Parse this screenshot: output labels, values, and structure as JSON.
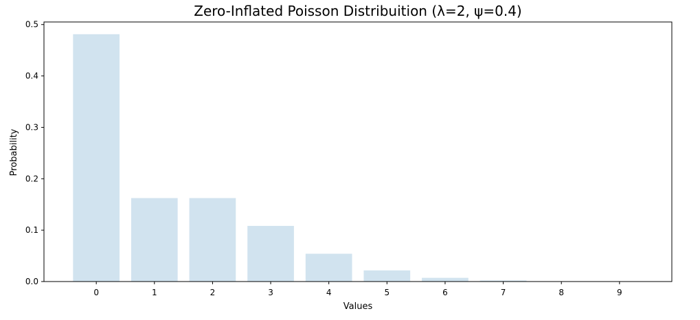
{
  "chart_data": {
    "type": "bar",
    "title": "Zero-Inflated Poisson Distribuition (λ=2, ψ=0.4)",
    "xlabel": "Values",
    "ylabel": "Probability",
    "categories": [
      "0",
      "1",
      "2",
      "3",
      "4",
      "5",
      "6",
      "7",
      "8",
      "9"
    ],
    "values": [
      0.4812,
      0.1624,
      0.1624,
      0.1083,
      0.0541,
      0.0217,
      0.0072,
      0.0021,
      0.0005,
      0.0001
    ],
    "yticks": [
      "0.0",
      "0.1",
      "0.2",
      "0.3",
      "0.4",
      "0.5"
    ],
    "ylim": [
      0,
      0.505
    ],
    "bar_color": "#d1e3ef",
    "grid": false,
    "legend": false
  }
}
